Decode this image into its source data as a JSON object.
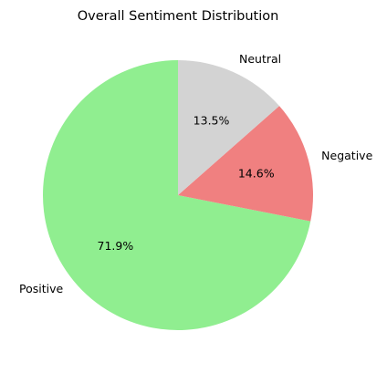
{
  "chart_data": {
    "type": "pie",
    "title": "Overall Sentiment Distribution",
    "slices": [
      {
        "label": "Positive",
        "value": 71.9,
        "pct_label": "71.9%",
        "color": "#90ee90"
      },
      {
        "label": "Negative",
        "value": 14.6,
        "pct_label": "14.6%",
        "color": "#f08080"
      },
      {
        "label": "Neutral",
        "value": 13.5,
        "pct_label": "13.5%",
        "color": "#d3d3d3"
      }
    ],
    "start_angle_deg": 90,
    "direction": "counterclockwise"
  }
}
